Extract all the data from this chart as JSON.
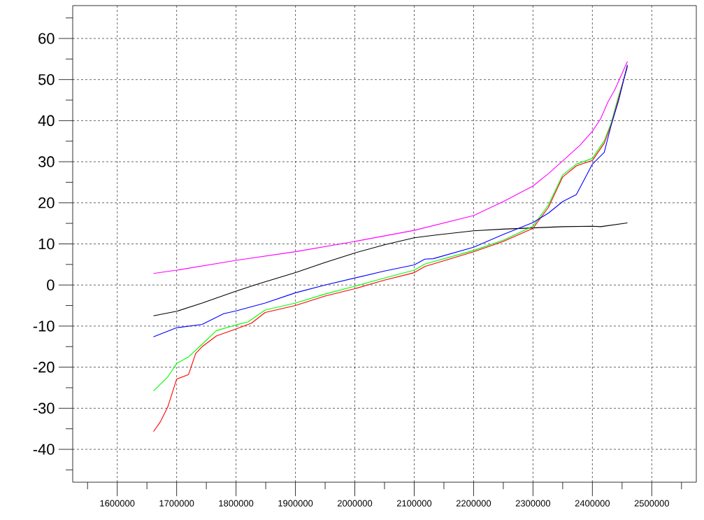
{
  "chart_data": {
    "type": "line",
    "xlim": [
      1525000,
      2575000
    ],
    "ylim": [
      -48,
      68
    ],
    "xticks": [
      {
        "value": 1550000,
        "label": null
      },
      1600000,
      {
        "value": 1650000,
        "label": null
      },
      1700000,
      {
        "value": 1750000,
        "label": null
      },
      1800000,
      {
        "value": 1850000,
        "label": null
      },
      1900000,
      {
        "value": 1950000,
        "label": null
      },
      2000000,
      {
        "value": 2050000,
        "label": null
      },
      2100000,
      {
        "value": 2150000,
        "label": null
      },
      2200000,
      {
        "value": 2250000,
        "label": null
      },
      2300000,
      {
        "value": 2350000,
        "label": null
      },
      2400000,
      {
        "value": 2450000,
        "label": null
      },
      2500000,
      {
        "value": 2550000,
        "label": null
      }
    ],
    "yticks": [
      {
        "value": -45,
        "label": null
      },
      -40,
      {
        "value": -35,
        "label": null
      },
      -30,
      {
        "value": -25,
        "label": null
      },
      -20,
      {
        "value": -15,
        "label": null
      },
      -10,
      {
        "value": -5,
        "label": null
      },
      0,
      {
        "value": 5,
        "label": null
      },
      10,
      {
        "value": 15,
        "label": null
      },
      20,
      {
        "value": 25,
        "label": null
      },
      30,
      {
        "value": 35,
        "label": null
      },
      40,
      {
        "value": 45,
        "label": null
      },
      50,
      {
        "value": 55,
        "label": null
      },
      60,
      {
        "value": 65,
        "label": null
      }
    ],
    "grid": true,
    "series": [
      {
        "color": "#000000",
        "x": [
          1661000,
          1700000,
          1743000,
          1800000,
          1838000,
          1900000,
          1950000,
          2000000,
          2050000,
          2100000,
          2132000,
          2200000,
          2250000,
          2300000,
          2350000,
          2400000,
          2414000,
          2459000
        ],
        "values": [
          -7.5,
          -6.4,
          -4.4,
          -1.5,
          0.3,
          3.0,
          5.5,
          7.8,
          9.8,
          11.5,
          12.1,
          13.2,
          13.6,
          13.9,
          14.2,
          14.3,
          14.2,
          15.1
        ]
      },
      {
        "color": "#ff00ff",
        "x": [
          1661000,
          1700000,
          1800000,
          1900000,
          2000000,
          2100000,
          2200000,
          2250000,
          2300000,
          2326000,
          2350000,
          2379000,
          2400000,
          2414000,
          2426000,
          2438000,
          2459000
        ],
        "values": [
          2.8,
          3.6,
          6.0,
          8.1,
          10.6,
          13.3,
          16.9,
          20.3,
          24.1,
          27.1,
          30.2,
          34.0,
          37.4,
          40.5,
          44.5,
          47.6,
          54.4
        ]
      },
      {
        "color": "#0000ff",
        "x": [
          1661000,
          1700000,
          1743000,
          1779000,
          1800000,
          1849000,
          1900000,
          1950000,
          2000000,
          2050000,
          2100000,
          2118000,
          2132000,
          2200000,
          2250000,
          2300000,
          2326000,
          2350000,
          2373000,
          2400000,
          2420000,
          2432000,
          2444000,
          2459000
        ],
        "values": [
          -12.6,
          -10.4,
          -9.6,
          -7.0,
          -6.3,
          -4.4,
          -1.9,
          0.0,
          1.7,
          3.4,
          4.9,
          6.3,
          6.4,
          9.2,
          12.3,
          15.2,
          17.5,
          20.3,
          22.0,
          29.4,
          32.3,
          39.1,
          44.8,
          53.6
        ]
      },
      {
        "color": "#00ff00",
        "x": [
          1661000,
          1685000,
          1700000,
          1720000,
          1743000,
          1767000,
          1800000,
          1820000,
          1849000,
          1900000,
          1950000,
          2000000,
          2050000,
          2100000,
          2118000,
          2200000,
          2250000,
          2300000,
          2326000,
          2350000,
          2373000,
          2400000,
          2420000,
          2432000,
          2444000,
          2459000
        ],
        "values": [
          -25.8,
          -22.4,
          -19.1,
          -17.5,
          -14.4,
          -11.1,
          -9.7,
          -9.0,
          -6.1,
          -4.4,
          -2.2,
          -0.3,
          1.7,
          3.6,
          5.1,
          8.4,
          10.9,
          14.3,
          19.5,
          26.8,
          29.4,
          30.8,
          35.1,
          39.6,
          45.9,
          53.0
        ]
      },
      {
        "color": "#ff0000",
        "x": [
          1661000,
          1673000,
          1685000,
          1700000,
          1720000,
          1732000,
          1743000,
          1767000,
          1800000,
          1826000,
          1849000,
          1900000,
          1950000,
          2000000,
          2050000,
          2100000,
          2118000,
          2200000,
          2250000,
          2300000,
          2326000,
          2350000,
          2373000,
          2400000,
          2420000,
          2432000,
          2444000,
          2459000
        ],
        "values": [
          -35.7,
          -33.2,
          -29.7,
          -22.9,
          -21.8,
          -16.7,
          -15.0,
          -12.4,
          -10.7,
          -9.3,
          -6.7,
          -5.0,
          -2.7,
          -0.9,
          1.2,
          3.0,
          4.5,
          8.1,
          10.6,
          13.8,
          18.9,
          26.3,
          29.0,
          30.3,
          34.5,
          39.1,
          45.3,
          53.3
        ]
      }
    ]
  }
}
